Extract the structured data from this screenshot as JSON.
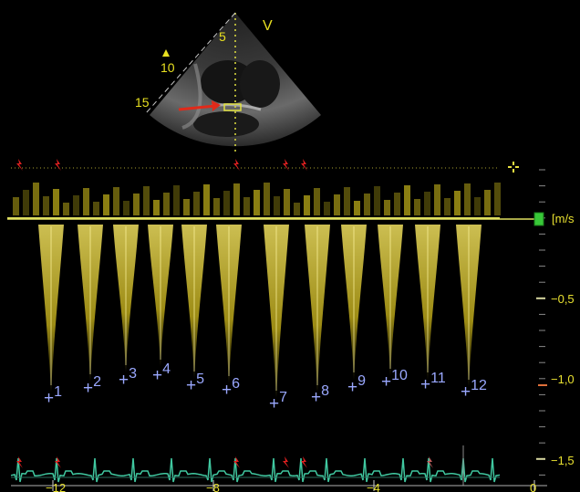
{
  "sector": {
    "depth_labels": [
      "5",
      "10",
      "15"
    ],
    "view_label": "V"
  },
  "velocity_scale": {
    "unit": "[m/s",
    "ticks": [
      "−0,5",
      "−1,0",
      "−1,5"
    ]
  },
  "time_axis": {
    "ticks": [
      "−12",
      "−8",
      "−4",
      "0"
    ]
  },
  "measurements": [
    "1",
    "2",
    "3",
    "4",
    "5",
    "6",
    "7",
    "8",
    "9",
    "10",
    "11",
    "12"
  ],
  "colors": {
    "doppler": "#d8cc20",
    "baseline": "#e0e060",
    "ecg": "#40c8a0",
    "r_marker": "#e02020",
    "markers": "#9aa8ff",
    "arrow": "#e02a1a"
  },
  "icons": [
    "crosshair-icon",
    "scale-handle-icon",
    "r-wave-marker-icon",
    "focus-marker-icon"
  ]
}
